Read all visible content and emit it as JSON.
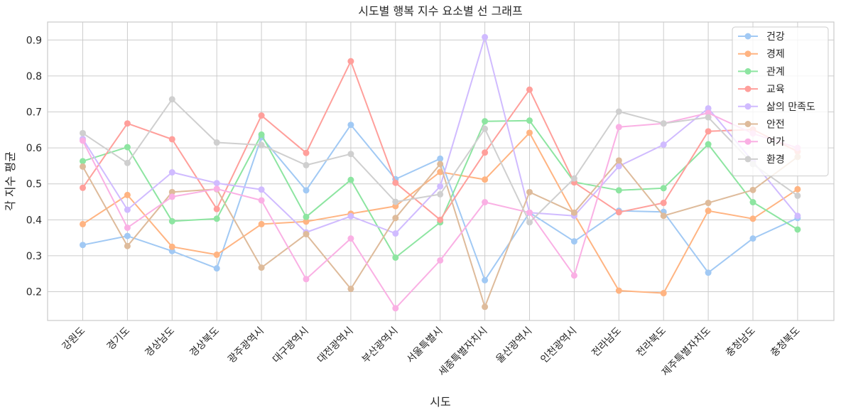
{
  "chart_data": {
    "type": "line",
    "title": "시도별 행복 지수 요소별 선 그래프",
    "xlabel": "시도",
    "ylabel": "각 지수 평균",
    "ylim": [
      0.12,
      0.95
    ],
    "yticks": [
      0.2,
      0.3,
      0.4,
      0.5,
      0.6,
      0.7,
      0.8,
      0.9
    ],
    "grid": true,
    "legend_position": "top-right",
    "categories": [
      "강원도",
      "경기도",
      "경상남도",
      "경상북도",
      "광주광역시",
      "대구광역시",
      "대전광역시",
      "부산광역시",
      "서울특별시",
      "세종특별자치시",
      "울산광역시",
      "인천광역시",
      "전라남도",
      "전라북도",
      "제주특별자치도",
      "충청남도",
      "충청북도"
    ],
    "series": [
      {
        "name": "건강",
        "color": "#a1c9f4",
        "values": [
          0.33,
          0.355,
          0.313,
          0.265,
          0.63,
          0.482,
          0.664,
          0.513,
          0.57,
          0.232,
          0.42,
          0.34,
          0.425,
          0.422,
          0.253,
          0.348,
          0.405
        ]
      },
      {
        "name": "경제",
        "color": "#ffb482",
        "values": [
          0.388,
          0.469,
          0.325,
          0.303,
          0.388,
          0.395,
          0.417,
          0.438,
          0.533,
          0.512,
          0.642,
          0.415,
          0.203,
          0.196,
          0.425,
          0.403,
          0.485
        ]
      },
      {
        "name": "관계",
        "color": "#8de5a1",
        "values": [
          0.563,
          0.602,
          0.396,
          0.403,
          0.637,
          0.408,
          0.511,
          0.295,
          0.393,
          0.674,
          0.676,
          0.505,
          0.482,
          0.488,
          0.61,
          0.449,
          0.373
        ]
      },
      {
        "name": "교육",
        "color": "#ff9f9b",
        "values": [
          0.489,
          0.668,
          0.624,
          0.43,
          0.69,
          0.586,
          0.841,
          0.503,
          0.4,
          0.587,
          0.762,
          0.504,
          0.421,
          0.447,
          0.646,
          0.651,
          0.59
        ]
      },
      {
        "name": "삶의 만족도",
        "color": "#d0bbff",
        "values": [
          0.625,
          0.428,
          0.532,
          0.502,
          0.484,
          0.365,
          0.41,
          0.362,
          0.493,
          0.908,
          0.42,
          0.411,
          0.549,
          0.609,
          0.71,
          0.562,
          0.411
        ]
      },
      {
        "name": "안전",
        "color": "#debb9b",
        "values": [
          0.548,
          0.327,
          0.477,
          0.485,
          0.267,
          0.36,
          0.208,
          0.405,
          0.555,
          0.158,
          0.477,
          0.42,
          0.565,
          0.411,
          0.447,
          0.483,
          0.575
        ]
      },
      {
        "name": "여가",
        "color": "#fab0e4",
        "values": [
          0.62,
          0.378,
          0.464,
          0.486,
          0.454,
          0.235,
          0.348,
          0.154,
          0.287,
          0.449,
          0.42,
          0.245,
          0.658,
          0.668,
          0.697,
          0.64,
          0.6
        ]
      },
      {
        "name": "환경",
        "color": "#cfcfcf",
        "values": [
          0.641,
          0.558,
          0.735,
          0.615,
          0.608,
          0.552,
          0.583,
          0.45,
          0.471,
          0.653,
          0.393,
          0.515,
          0.701,
          0.668,
          0.685,
          0.555,
          0.467
        ]
      }
    ]
  }
}
